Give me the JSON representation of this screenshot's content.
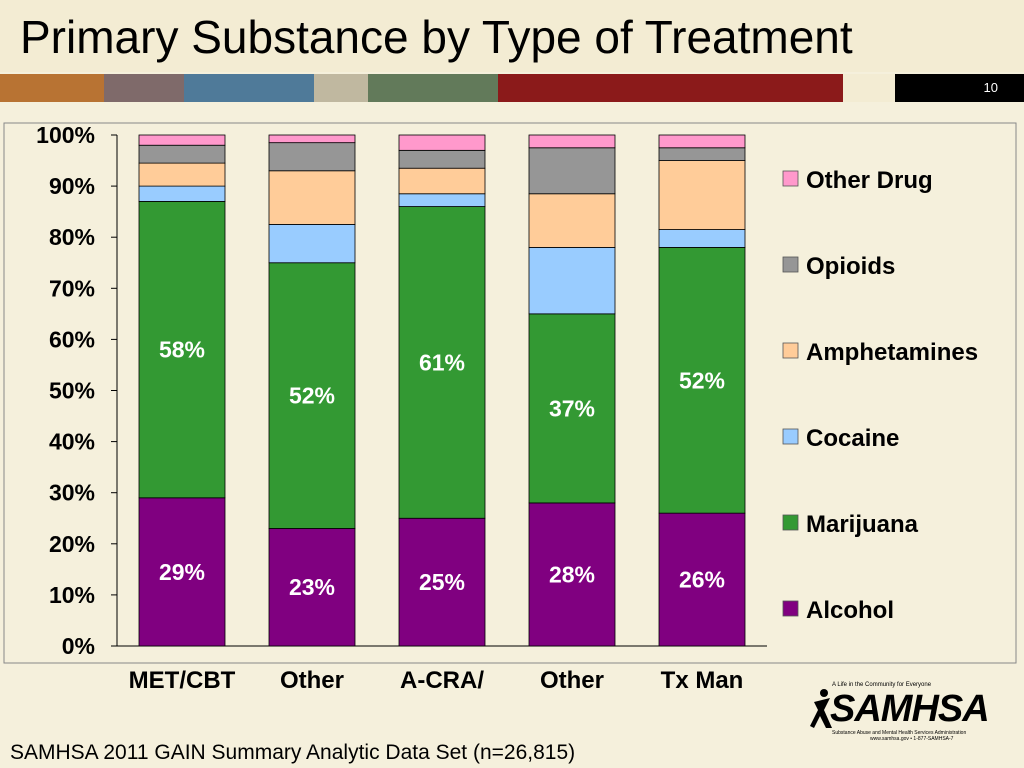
{
  "slide": {
    "title": "Primary Substance by Type of Treatment",
    "slide_number": "10",
    "footer": "SAMHSA 2011 GAIN Summary Analytic Data Set (n=26,815)",
    "stripe_colors": [
      "#b87333",
      "#7f6a6a",
      "#4f7a99",
      "#c0b8a0",
      "#627a5a",
      "#8b1a1a",
      "#f3ecd3",
      "#000000"
    ]
  },
  "logo": {
    "tagline": "A Life in the Community for Everyone",
    "word": "SAMHSA",
    "subtitle": "Substance Abuse and Mental Health Services Administration",
    "url": "www.samhsa.gov • 1-877-SAMHSA-7"
  },
  "chart_data": {
    "type": "bar",
    "stacked": true,
    "categories": [
      "MET/CBT",
      "Other\nEBTx",
      "A-CRA/\nACC",
      "Other",
      "Tx Man"
    ],
    "ylim": [
      0,
      100
    ],
    "yticks": [
      "0%",
      "10%",
      "20%",
      "30%",
      "40%",
      "50%",
      "60%",
      "70%",
      "80%",
      "90%",
      "100%"
    ],
    "legend_position": "right",
    "series": [
      {
        "name": "Alcohol",
        "color": "#800080",
        "values": [
          29,
          23,
          25,
          28,
          26
        ],
        "labels": [
          "29%",
          "23%",
          "25%",
          "28%",
          "26%"
        ]
      },
      {
        "name": "Marijuana",
        "color": "#339933",
        "values": [
          58,
          52,
          61,
          37,
          52
        ],
        "labels": [
          "58%",
          "52%",
          "61%",
          "37%",
          "52%"
        ]
      },
      {
        "name": "Cocaine",
        "color": "#99ccff",
        "values": [
          3,
          7.5,
          2.5,
          13,
          3.5
        ],
        "labels": []
      },
      {
        "name": "Amphetamines",
        "color": "#ffcc99",
        "values": [
          4.5,
          10.5,
          5,
          10.5,
          13.5
        ],
        "labels": []
      },
      {
        "name": "Opioids",
        "color": "#969696",
        "values": [
          3.5,
          5.5,
          3.5,
          9,
          2.5
        ],
        "labels": []
      },
      {
        "name": "Other Drug",
        "color": "#ff99cc",
        "values": [
          2,
          1.5,
          3,
          2.5,
          2.5
        ],
        "labels": []
      }
    ]
  }
}
